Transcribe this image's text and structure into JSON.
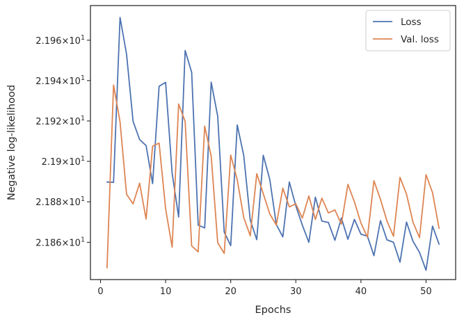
{
  "chart_data": {
    "type": "line",
    "xlabel": "Epochs",
    "ylabel": "Negative log-likelihood",
    "xlim": [
      -1.55,
      54.55
    ],
    "ylim": [
      21.8416,
      21.9772
    ],
    "yscale": "log",
    "grid": false,
    "legend_position": "top-right",
    "x_ticks": [
      0,
      10,
      20,
      30,
      40,
      50
    ],
    "x_tick_labels": [
      "0",
      "10",
      "20",
      "30",
      "40",
      "50"
    ],
    "y_ticks": [
      21.86,
      21.88,
      21.9,
      21.92,
      21.94,
      21.96
    ],
    "y_tick_labels": [
      {
        "mantissa": "2.186",
        "exponent": "1"
      },
      {
        "mantissa": "2.188",
        "exponent": "1"
      },
      {
        "mantissa": "2.19",
        "exponent": "1"
      },
      {
        "mantissa": "2.192",
        "exponent": "1"
      },
      {
        "mantissa": "2.194",
        "exponent": "1"
      },
      {
        "mantissa": "2.196",
        "exponent": "1"
      }
    ],
    "times_symbol": "×",
    "base": "10",
    "x": [
      1,
      2,
      3,
      4,
      5,
      6,
      7,
      8,
      9,
      10,
      11,
      12,
      13,
      14,
      15,
      16,
      17,
      18,
      19,
      20,
      21,
      22,
      23,
      24,
      25,
      26,
      27,
      28,
      29,
      30,
      31,
      32,
      33,
      34,
      35,
      36,
      37,
      38,
      39,
      40,
      41,
      42,
      43,
      44,
      45,
      46,
      47,
      48,
      49,
      50,
      51,
      52
    ],
    "series": [
      {
        "name": "Loss",
        "color": "#4c72b0",
        "values": [
          21.8898,
          21.8896,
          21.9713,
          21.953,
          21.9198,
          21.9108,
          21.9078,
          21.889,
          21.9372,
          21.9391,
          21.8941,
          21.8725,
          21.9549,
          21.9441,
          21.8685,
          21.8671,
          21.9392,
          21.9223,
          21.865,
          21.8584,
          21.918,
          21.9029,
          21.871,
          21.8613,
          21.903,
          21.891,
          21.8688,
          21.8627,
          21.8898,
          21.878,
          21.8685,
          21.86,
          21.8823,
          21.8705,
          21.8698,
          21.861,
          21.872,
          21.8615,
          21.8713,
          21.864,
          21.863,
          21.8534,
          21.8707,
          21.8612,
          21.86,
          21.8502,
          21.87,
          21.8605,
          21.855,
          21.8462,
          21.868,
          21.8591
        ]
      },
      {
        "name": "Val. loss",
        "color": "#dd8452",
        "values": [
          21.8474,
          21.9378,
          21.9195,
          21.8837,
          21.879,
          21.8892,
          21.8715,
          21.9075,
          21.909,
          21.8765,
          21.8576,
          21.9284,
          21.9197,
          21.8582,
          21.8553,
          21.9174,
          21.9025,
          21.8598,
          21.8545,
          21.9031,
          21.8909,
          21.8722,
          21.8632,
          21.8939,
          21.884,
          21.874,
          21.8685,
          21.8867,
          21.8775,
          21.879,
          21.872,
          21.8829,
          21.8713,
          21.8818,
          21.8745,
          21.876,
          21.869,
          21.8886,
          21.88,
          21.8695,
          21.8625,
          21.8904,
          21.8812,
          21.8705,
          21.863,
          21.8921,
          21.8838,
          21.8699,
          21.8623,
          21.8934,
          21.8845,
          21.8669
        ]
      }
    ]
  }
}
